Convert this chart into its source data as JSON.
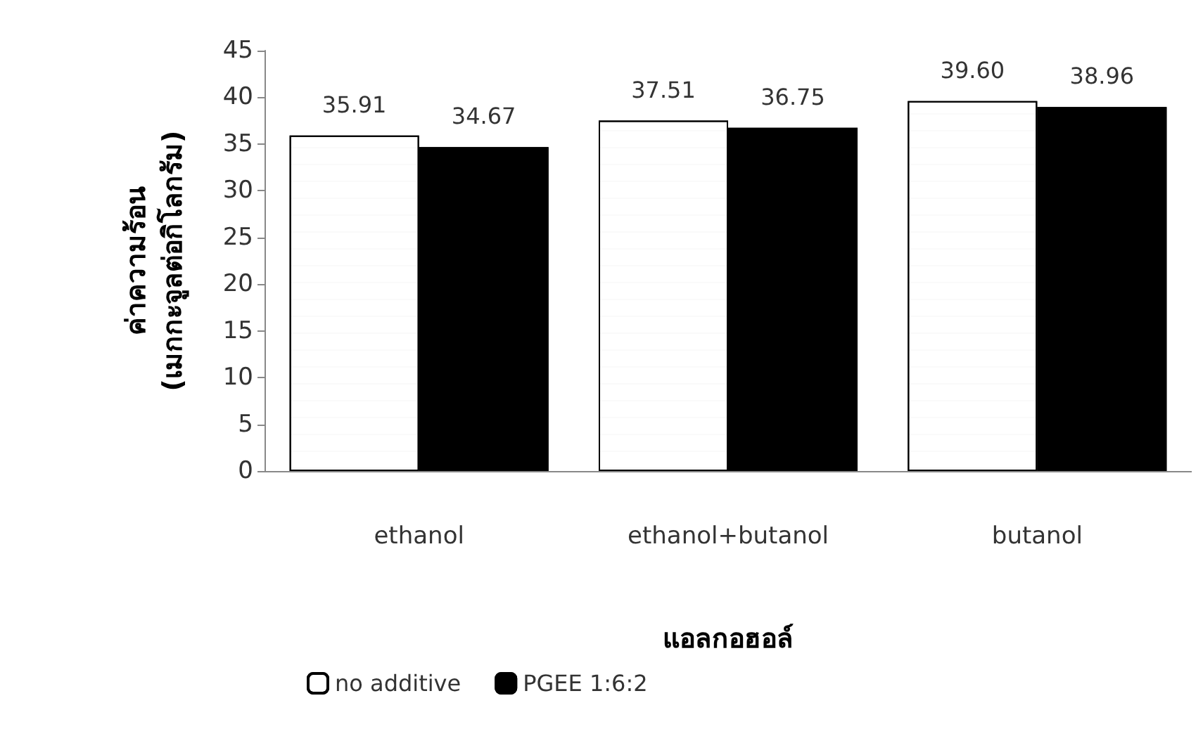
{
  "chart_data": {
    "type": "bar",
    "xlabel": "แอลกอฮอล์",
    "ylabel": "ค่าความร้อน\n(เมกกะจูลต่อกิโลกรัม)",
    "categories": [
      "ethanol",
      "ethanol+butanol",
      "butanol"
    ],
    "series": [
      {
        "name": "no additive",
        "color": "#ffffff",
        "values": [
          35.91,
          37.51,
          39.6
        ]
      },
      {
        "name": "PGEE 1:6:2",
        "color": "#000000",
        "values": [
          34.67,
          36.75,
          38.96
        ]
      }
    ],
    "value_labels": [
      [
        "35.91",
        "37.51",
        "39.60"
      ],
      [
        "34.67",
        "36.75",
        "38.96"
      ]
    ],
    "ylim": [
      0,
      45
    ],
    "yticks": [
      0,
      5,
      10,
      15,
      20,
      25,
      30,
      35,
      40,
      45
    ],
    "grid": false,
    "legend": "bottom"
  }
}
